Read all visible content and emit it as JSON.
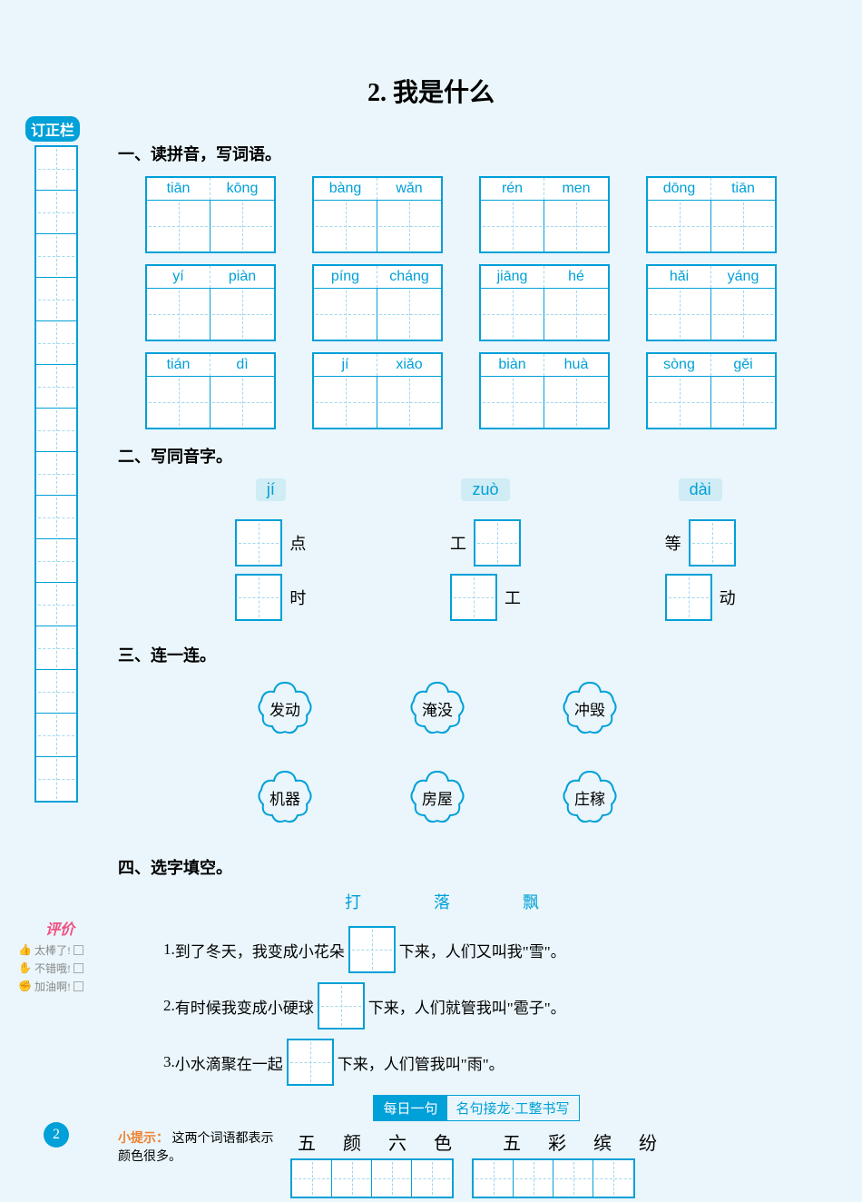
{
  "page_title": "2. 我是什么",
  "sidebar_label": "订正栏",
  "correction_rows": 15,
  "colors": {
    "primary": "#00a0d8",
    "dash": "#a0d8ec",
    "background": "#eaf6fb",
    "hint": "#f08030",
    "eval_title": "#f05080"
  },
  "section1": {
    "title": "一、读拼音，写词语。",
    "rows": [
      [
        [
          "tiān",
          "kōng"
        ],
        [
          "bàng",
          "wǎn"
        ],
        [
          "rén",
          "men"
        ],
        [
          "dōng",
          "tiān"
        ]
      ],
      [
        [
          "yí",
          "piàn"
        ],
        [
          "píng",
          "cháng"
        ],
        [
          "jiāng",
          "hé"
        ],
        [
          "hǎi",
          "yáng"
        ]
      ],
      [
        [
          "tián",
          "dì"
        ],
        [
          "jí",
          "xiǎo"
        ],
        [
          "biàn",
          "huà"
        ],
        [
          "sòng",
          "gěi"
        ]
      ]
    ]
  },
  "section2": {
    "title": "二、写同音字。",
    "groups": [
      {
        "pinyin": "jí",
        "items": [
          {
            "side": "right",
            "char": "点"
          },
          {
            "side": "right",
            "char": "时"
          }
        ]
      },
      {
        "pinyin": "zuò",
        "items": [
          {
            "side": "left",
            "char": "工"
          },
          {
            "side": "right",
            "char": "工"
          }
        ]
      },
      {
        "pinyin": "dài",
        "items": [
          {
            "side": "left",
            "char": "等"
          },
          {
            "side": "right",
            "char": "动"
          }
        ]
      }
    ]
  },
  "section3": {
    "title": "三、连一连。",
    "top": [
      "发动",
      "淹没",
      "冲毁"
    ],
    "bottom": [
      "机器",
      "房屋",
      "庄稼"
    ]
  },
  "section4": {
    "title": "四、选字填空。",
    "options": [
      "打",
      "落",
      "飘"
    ],
    "sentences": [
      {
        "num": "1.",
        "pre": "到了冬天，我变成小花朵",
        "post": "下来，人们又叫我\"雪\"。"
      },
      {
        "num": "2.",
        "pre": "有时候我变成小硬球",
        "post": "下来，人们就管我叫\"雹子\"。"
      },
      {
        "num": "3.",
        "pre": "小水滴聚在一起",
        "post": "下来，人们管我叫\"雨\"。"
      }
    ]
  },
  "daily": {
    "left": "每日一句",
    "right": "名句接龙·工整书写"
  },
  "writing": {
    "group1": [
      "五",
      "颜",
      "六",
      "色"
    ],
    "group2": [
      "五",
      "彩",
      "缤",
      "纷"
    ]
  },
  "hint": {
    "label": "小提示：",
    "text": "这两个词语都表示颜色很多。"
  },
  "page_number": "2",
  "eval": {
    "title": "评价",
    "items": [
      {
        "icon": "👍",
        "label": "太棒了!"
      },
      {
        "icon": "✋",
        "label": "不错哦!"
      },
      {
        "icon": "✊",
        "label": "加油啊!"
      }
    ]
  }
}
